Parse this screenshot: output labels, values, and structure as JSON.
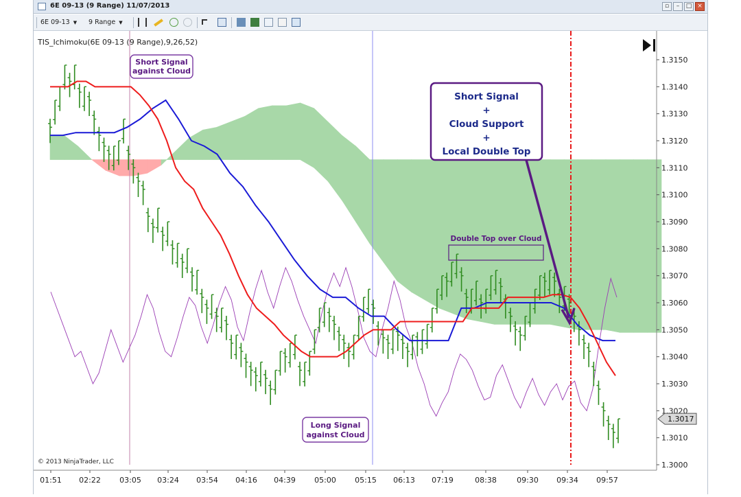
{
  "window": {
    "title": "6E 09-13 (9 Range)  11/07/2013"
  },
  "toolbar": {
    "instrument_label": "6E 09-13",
    "period_label": "9 Range"
  },
  "chart_data": {
    "type": "candlestick",
    "indicator_label": "TIS_Ichimoku(6E 09-13 (9 Range),9,26,52)",
    "copyright": "© 2013 NinjaTrader, LLC",
    "last_price_label": "1.3017",
    "ylim": [
      1.3,
      1.3158
    ],
    "y_ticks": [
      "1.3150",
      "1.3140",
      "1.3130",
      "1.3120",
      "1.3110",
      "1.3100",
      "1.3090",
      "1.3080",
      "1.3070",
      "1.3060",
      "1.3050",
      "1.3040",
      "1.3030",
      "1.3020",
      "1.3010",
      "1.3000"
    ],
    "x_ticks": [
      "01:51",
      "02:22",
      "03:05",
      "03:24",
      "03:54",
      "04:16",
      "04:39",
      "05:00",
      "05:15",
      "06:13",
      "07:19",
      "08:38",
      "09:30",
      "09:34",
      "09:57"
    ],
    "bars_close": [
      1.3125,
      1.3135,
      1.314,
      1.3148,
      1.3142,
      1.3148,
      1.3138,
      1.314,
      1.3135,
      1.3128,
      1.3122,
      1.3118,
      1.3115,
      1.3118,
      1.312,
      1.3128,
      1.3115,
      1.311,
      1.3105,
      1.3102,
      1.3092,
      1.3088,
      1.3095,
      1.3085,
      1.309,
      1.308,
      1.3082,
      1.3075,
      1.308,
      1.307,
      1.3072,
      1.3062,
      1.3058,
      1.3063,
      1.3055,
      1.3058,
      1.3052,
      1.3045,
      1.3048,
      1.3042,
      1.3038,
      1.3035,
      1.3033,
      1.3038,
      1.3032,
      1.3028,
      1.3035,
      1.3042,
      1.304,
      1.3045,
      1.3048,
      1.3035,
      1.3038,
      1.3042,
      1.305,
      1.3058,
      1.306,
      1.3055,
      1.3052,
      1.3048,
      1.3045,
      1.3042,
      1.3048,
      1.3055,
      1.3062,
      1.3065,
      1.3058,
      1.305,
      1.3047,
      1.3045,
      1.305,
      1.3048,
      1.3045,
      1.3042,
      1.3048,
      1.3046,
      1.305,
      1.3052,
      1.3058,
      1.3065,
      1.307,
      1.3068,
      1.3075,
      1.3078,
      1.307,
      1.3062,
      1.3065,
      1.3068,
      1.306,
      1.3065,
      1.307,
      1.3072,
      1.3066,
      1.306,
      1.3055,
      1.305,
      1.3048,
      1.3055,
      1.306,
      1.3065,
      1.307,
      1.3068,
      1.3072,
      1.3068,
      1.3062,
      1.3066,
      1.306,
      1.3055,
      1.305,
      1.3045,
      1.3042,
      1.3035,
      1.3028,
      1.302,
      1.3015,
      1.3012,
      1.3017
    ],
    "tenkan_sen": [
      1.314,
      1.314,
      1.314,
      1.3142,
      1.3142,
      1.314,
      1.314,
      1.314,
      1.314,
      1.314,
      1.3137,
      1.3133,
      1.3128,
      1.312,
      1.311,
      1.3105,
      1.3102,
      1.3095,
      1.309,
      1.3085,
      1.3078,
      1.307,
      1.3063,
      1.3058,
      1.3055,
      1.3052,
      1.3048,
      1.3045,
      1.3042,
      1.304,
      1.304,
      1.304,
      1.304,
      1.3042,
      1.3045,
      1.3048,
      1.305,
      1.305,
      1.305,
      1.3053,
      1.3053,
      1.3053,
      1.3053,
      1.3053,
      1.3053,
      1.3053,
      1.3053,
      1.3058,
      1.3058,
      1.3058,
      1.3058,
      1.3062,
      1.3062,
      1.3062,
      1.3062,
      1.3062,
      1.3063,
      1.3063,
      1.3062,
      1.3058,
      1.3052,
      1.3045,
      1.3038,
      1.3033
    ],
    "kijun_sen": [
      1.3122,
      1.3122,
      1.3123,
      1.3123,
      1.3123,
      1.3123,
      1.3125,
      1.3128,
      1.3132,
      1.3135,
      1.3128,
      1.312,
      1.3118,
      1.3115,
      1.3108,
      1.3103,
      1.3096,
      1.309,
      1.3083,
      1.3076,
      1.307,
      1.3065,
      1.3062,
      1.3062,
      1.3058,
      1.3055,
      1.3055,
      1.305,
      1.3046,
      1.3046,
      1.3046,
      1.3046,
      1.3058,
      1.3058,
      1.306,
      1.306,
      1.306,
      1.306,
      1.306,
      1.306,
      1.3058,
      1.3052,
      1.3048,
      1.3046,
      1.3046
    ],
    "senkou_span_a": [
      1.3122,
      1.3122,
      1.3118,
      1.3113,
      1.3109,
      1.3107,
      1.3107,
      1.3108,
      1.3111,
      1.3116,
      1.3121,
      1.3124,
      1.3125,
      1.3127,
      1.3129,
      1.3132,
      1.3133,
      1.3133,
      1.3134,
      1.3132,
      1.3127,
      1.3122,
      1.3118,
      1.3113,
      1.3113,
      1.3113,
      1.3113,
      1.3113,
      1.3113,
      1.3113,
      1.3113,
      1.3113,
      1.3113,
      1.3113,
      1.3113,
      1.3113,
      1.3113,
      1.3113,
      1.3113,
      1.3113,
      1.3113,
      1.3113,
      1.3113,
      1.3113,
      1.3113
    ],
    "senkou_span_b": [
      1.3113,
      1.3113,
      1.3113,
      1.3113,
      1.3113,
      1.3113,
      1.3113,
      1.3113,
      1.3113,
      1.3113,
      1.3113,
      1.3113,
      1.3113,
      1.3113,
      1.3113,
      1.3113,
      1.3113,
      1.3113,
      1.3113,
      1.311,
      1.3105,
      1.3098,
      1.309,
      1.3082,
      1.3075,
      1.3068,
      1.3064,
      1.3061,
      1.3058,
      1.3056,
      1.3054,
      1.3053,
      1.3052,
      1.3052,
      1.3052,
      1.3052,
      1.3052,
      1.3051,
      1.305,
      1.305,
      1.305,
      1.3049,
      1.3049,
      1.3049,
      1.3049
    ],
    "chikou_span": [
      1.3064,
      1.3058,
      1.3052,
      1.3046,
      1.304,
      1.3042,
      1.3036,
      1.303,
      1.3034,
      1.3042,
      1.305,
      1.3044,
      1.3038,
      1.3043,
      1.3048,
      1.3055,
      1.3063,
      1.3058,
      1.3049,
      1.3042,
      1.304,
      1.3047,
      1.3055,
      1.3062,
      1.3059,
      1.3051,
      1.3045,
      1.3052,
      1.306,
      1.3066,
      1.3061,
      1.3051,
      1.3046,
      1.3056,
      1.3065,
      1.3072,
      1.3064,
      1.3058,
      1.3066,
      1.3073,
      1.3068,
      1.3061,
      1.3055,
      1.305,
      1.3045,
      1.3056,
      1.3065,
      1.3071,
      1.3066,
      1.3073,
      1.3066,
      1.3057,
      1.3047,
      1.3042,
      1.304,
      1.305,
      1.3058,
      1.3068,
      1.3061,
      1.3051,
      1.3045,
      1.3036,
      1.303,
      1.3022,
      1.3018,
      1.3023,
      1.3027,
      1.3035,
      1.3041,
      1.3039,
      1.3035,
      1.3029,
      1.3024,
      1.3025,
      1.3033,
      1.3037,
      1.3031,
      1.3025,
      1.3021,
      1.3027,
      1.3032,
      1.3026,
      1.3022,
      1.3027,
      1.303,
      1.3024,
      1.3029,
      1.3031,
      1.3023,
      1.302,
      1.3028,
      1.3044,
      1.3058,
      1.3069,
      1.3062
    ],
    "signals": [
      {
        "time": "03:05",
        "label_lines": [
          "Short Signal",
          "against Cloud"
        ],
        "color": "#c080a8"
      },
      {
        "time": "05:15",
        "label_lines": [
          "Long Signal",
          "against Cloud"
        ],
        "color": "#8c8cf0"
      }
    ],
    "callout": {
      "lines": [
        "Short Signal",
        "+",
        "Cloud Support",
        "+",
        "Local Double Top"
      ]
    },
    "double_top_label": "Double Top over Cloud",
    "colors": {
      "tenkan": "#ee1c1c",
      "kijun": "#1a1ad6",
      "chikou": "#9a3cb4",
      "bars": "#2e8b1f",
      "cloud_bull": "#a8d8a8",
      "cloud_bear": "#ffaaaa",
      "annotation": "#5a1a82",
      "short_line": "#e81919"
    }
  }
}
